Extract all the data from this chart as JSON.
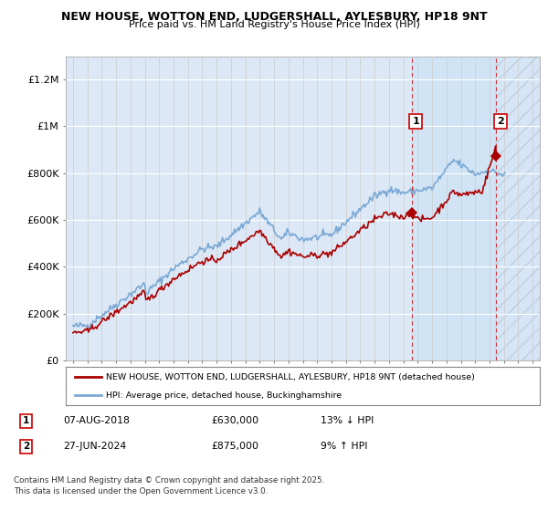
{
  "title": "NEW HOUSE, WOTTON END, LUDGERSHALL, AYLESBURY, HP18 9NT",
  "subtitle": "Price paid vs. HM Land Registry's House Price Index (HPI)",
  "background_color": "#ffffff",
  "plot_bg_color": "#dce8f5",
  "grid_color": "#ffffff",
  "hatch_region_color": "#c8d8e8",
  "shade_between_color": "#dce8f5",
  "ylim": [
    0,
    1300000
  ],
  "yticks": [
    0,
    200000,
    400000,
    600000,
    800000,
    1000000,
    1200000
  ],
  "ytick_labels": [
    "£0",
    "£200K",
    "£400K",
    "£600K",
    "£800K",
    "£1M",
    "£1.2M"
  ],
  "xlim_start": 1994.5,
  "xlim_end": 2027.5,
  "xticks": [
    1995,
    1996,
    1997,
    1998,
    1999,
    2000,
    2001,
    2002,
    2003,
    2004,
    2005,
    2006,
    2007,
    2008,
    2009,
    2010,
    2011,
    2012,
    2013,
    2014,
    2015,
    2016,
    2017,
    2018,
    2019,
    2020,
    2021,
    2022,
    2023,
    2024,
    2025,
    2026,
    2027
  ],
  "hpi_color": "#7aa8d4",
  "price_color": "#aa0000",
  "transaction1_x": 2018.58,
  "transaction1_y": 630000,
  "transaction2_x": 2024.47,
  "transaction2_y": 875000,
  "vline1_x": 2018.58,
  "vline2_x": 2024.47,
  "vline_color": "#cc3333",
  "legend_line1": "NEW HOUSE, WOTTON END, LUDGERSHALL, AYLESBURY, HP18 9NT (detached house)",
  "legend_line2": "HPI: Average price, detached house, Buckinghamshire",
  "table_row1": [
    "1",
    "07-AUG-2018",
    "£630,000",
    "13% ↓ HPI"
  ],
  "table_row2": [
    "2",
    "27-JUN-2024",
    "£875,000",
    "9% ↑ HPI"
  ],
  "footnote": "Contains HM Land Registry data © Crown copyright and database right 2025.\nThis data is licensed under the Open Government Licence v3.0."
}
